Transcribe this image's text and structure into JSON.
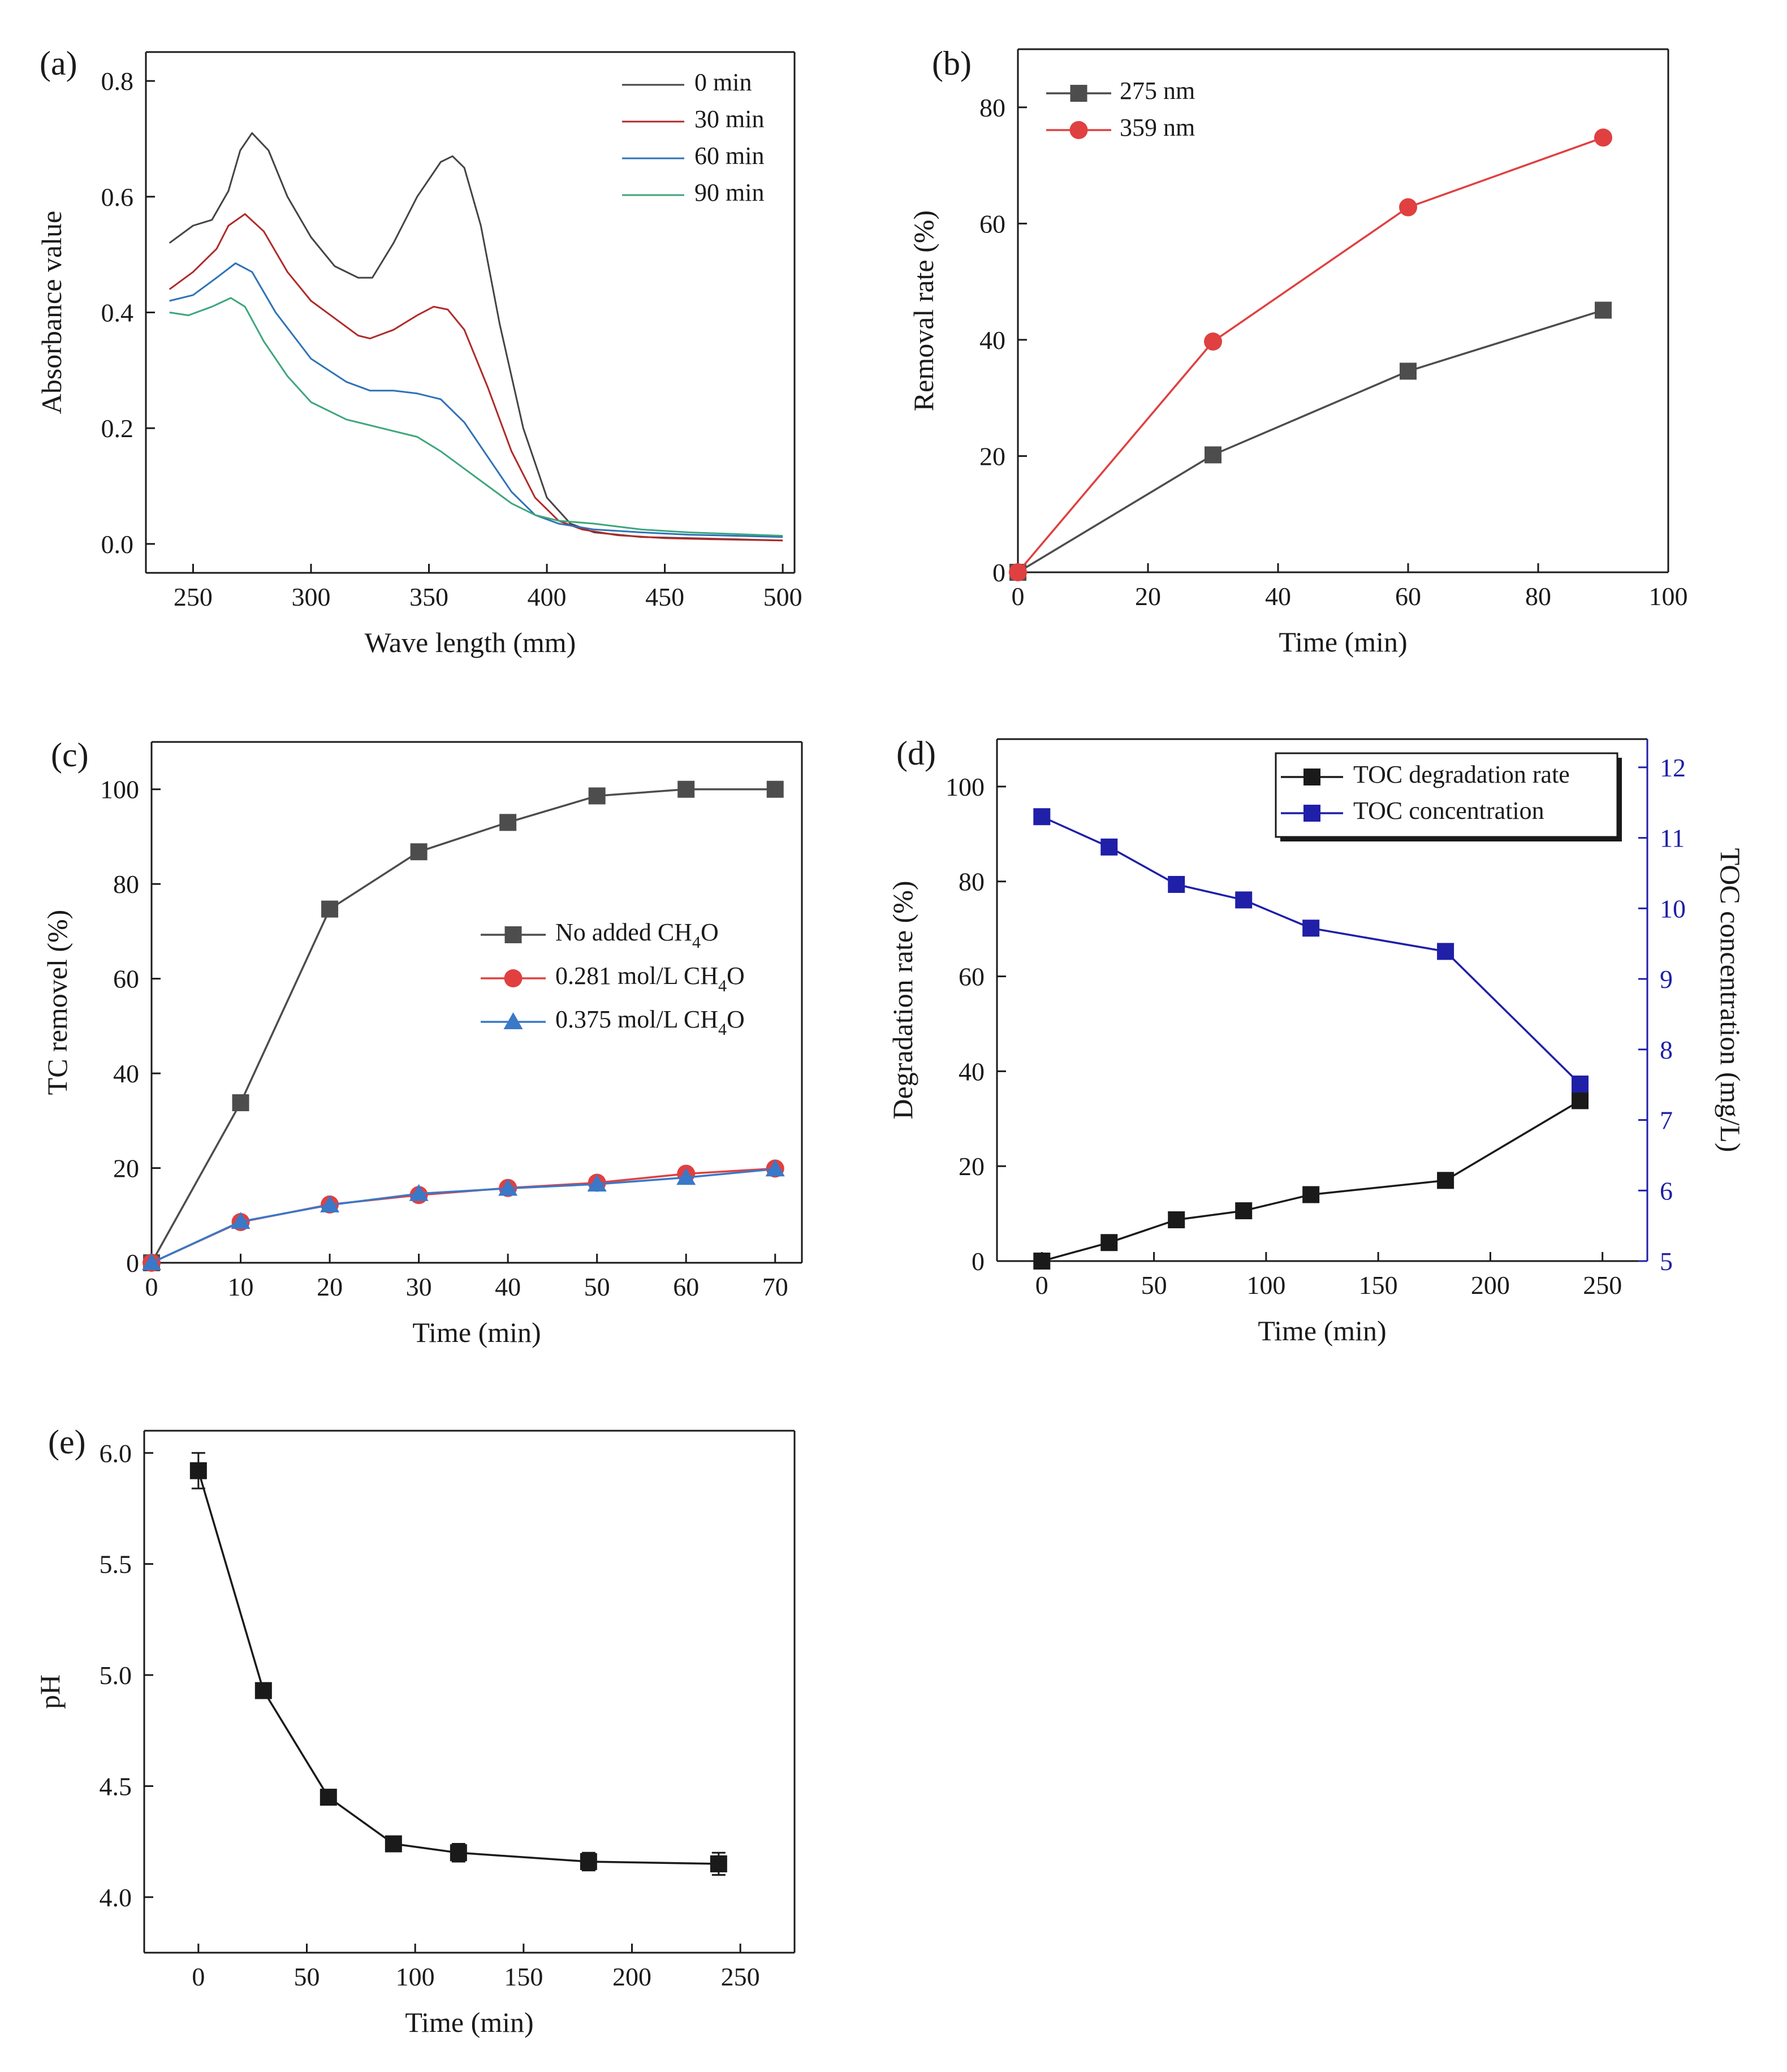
{
  "colors": {
    "black": "#1a1a1a",
    "gray": "#4d4d4d",
    "red": "#e04040",
    "blue": "#3a78c8",
    "dark_red": "#b02a2a",
    "steel_blue": "#2f72b8",
    "teal": "#3ea67c",
    "navy": "#1f1fa8",
    "axis": "#1a1a1a"
  },
  "chart_data": [
    {
      "id": "a",
      "letter": "(a)",
      "type": "line",
      "xlabel": "Wave length (mm)",
      "ylabel": "Absorbance value",
      "xlim": [
        230,
        505
      ],
      "ylim": [
        -0.05,
        0.85
      ],
      "xticks": [
        250,
        300,
        350,
        400,
        450,
        500
      ],
      "yticks": [
        0.0,
        0.2,
        0.4,
        0.6,
        0.8
      ],
      "ytick_labels": [
        "0.0",
        "0.2",
        "0.4",
        "0.6",
        "0.8"
      ],
      "grid": false,
      "legend_position": "top-right",
      "series": [
        {
          "name": "0 min",
          "color": "#444444",
          "marker": "none",
          "x": [
            240,
            250,
            258,
            265,
            270,
            275,
            282,
            290,
            300,
            310,
            320,
            326,
            335,
            345,
            355,
            360,
            365,
            372,
            380,
            390,
            400,
            410,
            420,
            440,
            460,
            480,
            500
          ],
          "y": [
            0.52,
            0.55,
            0.56,
            0.61,
            0.68,
            0.71,
            0.68,
            0.6,
            0.53,
            0.48,
            0.46,
            0.46,
            0.52,
            0.6,
            0.66,
            0.67,
            0.65,
            0.55,
            0.38,
            0.2,
            0.08,
            0.035,
            0.02,
            0.012,
            0.01,
            0.008,
            0.006
          ]
        },
        {
          "name": "30 min",
          "color": "#b02a2a",
          "marker": "none",
          "x": [
            240,
            250,
            260,
            265,
            272,
            280,
            290,
            300,
            310,
            320,
            325,
            335,
            345,
            352,
            358,
            365,
            375,
            385,
            395,
            405,
            415,
            430,
            450,
            470,
            500
          ],
          "y": [
            0.44,
            0.47,
            0.51,
            0.55,
            0.57,
            0.54,
            0.47,
            0.42,
            0.39,
            0.36,
            0.355,
            0.37,
            0.395,
            0.41,
            0.405,
            0.37,
            0.27,
            0.16,
            0.08,
            0.04,
            0.025,
            0.015,
            0.01,
            0.008,
            0.006
          ]
        },
        {
          "name": "60 min",
          "color": "#2f72b8",
          "marker": "none",
          "x": [
            240,
            250,
            260,
            268,
            275,
            285,
            300,
            315,
            325,
            335,
            345,
            355,
            365,
            375,
            385,
            395,
            405,
            420,
            440,
            460,
            480,
            500
          ],
          "y": [
            0.42,
            0.43,
            0.46,
            0.485,
            0.47,
            0.4,
            0.32,
            0.28,
            0.265,
            0.265,
            0.26,
            0.25,
            0.21,
            0.15,
            0.09,
            0.05,
            0.035,
            0.025,
            0.02,
            0.016,
            0.014,
            0.012
          ]
        },
        {
          "name": "90 min",
          "color": "#3ea67c",
          "marker": "none",
          "x": [
            240,
            248,
            258,
            266,
            272,
            280,
            290,
            300,
            315,
            330,
            345,
            355,
            365,
            375,
            385,
            395,
            405,
            420,
            440,
            460,
            480,
            500
          ],
          "y": [
            0.4,
            0.395,
            0.41,
            0.425,
            0.41,
            0.35,
            0.29,
            0.245,
            0.215,
            0.2,
            0.185,
            0.16,
            0.13,
            0.1,
            0.07,
            0.05,
            0.04,
            0.035,
            0.025,
            0.02,
            0.017,
            0.014
          ]
        }
      ]
    },
    {
      "id": "b",
      "letter": "(b)",
      "type": "line",
      "xlabel": "Time (min)",
      "ylabel": "Removal rate (%)",
      "xlim": [
        0,
        100
      ],
      "ylim": [
        0,
        90
      ],
      "xticks": [
        0,
        20,
        40,
        60,
        80,
        100
      ],
      "yticks": [
        0,
        20,
        40,
        60,
        80
      ],
      "grid": false,
      "legend_position": "top-left",
      "series": [
        {
          "name": "275 nm",
          "color": "#4d4d4d",
          "marker": "square",
          "x": [
            0,
            30,
            60,
            90
          ],
          "y": [
            0,
            20.2,
            34.6,
            45.1
          ]
        },
        {
          "name": "359 nm",
          "color": "#e04040",
          "marker": "circle",
          "x": [
            0,
            30,
            60,
            90
          ],
          "y": [
            0,
            39.7,
            62.8,
            74.8
          ]
        }
      ]
    },
    {
      "id": "c",
      "letter": "(c)",
      "type": "line",
      "xlabel": "Time (min)",
      "ylabel": "TC removel (%)",
      "xlim": [
        0,
        73
      ],
      "ylim": [
        0,
        110
      ],
      "xticks": [
        0,
        10,
        20,
        30,
        40,
        50,
        60,
        70
      ],
      "yticks": [
        0,
        20,
        40,
        60,
        80,
        100
      ],
      "grid": false,
      "legend_position": "center-right",
      "series": [
        {
          "name": "No added CH4O",
          "name_parts": [
            "No added CH",
            "4",
            "O"
          ],
          "color": "#4d4d4d",
          "marker": "square",
          "x": [
            0,
            10,
            20,
            30,
            40,
            50,
            60,
            70
          ],
          "y": [
            0,
            33.8,
            74.7,
            86.8,
            93.0,
            98.6,
            100,
            100
          ]
        },
        {
          "name": "0.281 mol/L CH4O",
          "name_parts": [
            "0.281 mol/L CH",
            "4",
            "O"
          ],
          "color": "#e04040",
          "marker": "circle",
          "x": [
            0,
            10,
            20,
            30,
            40,
            50,
            60,
            70
          ],
          "y": [
            0,
            8.6,
            12.3,
            14.3,
            15.8,
            16.9,
            18.8,
            19.9
          ]
        },
        {
          "name": "0.375 mol/L CH4O",
          "name_parts": [
            "0.375 mol/L CH",
            "4",
            "O"
          ],
          "color": "#3a78c8",
          "marker": "triangle",
          "x": [
            0,
            10,
            20,
            30,
            40,
            50,
            60,
            70
          ],
          "y": [
            0,
            8.7,
            12.2,
            14.6,
            15.7,
            16.6,
            18.0,
            19.8
          ]
        }
      ]
    },
    {
      "id": "d",
      "letter": "(d)",
      "type": "line",
      "xlabel": "Time (min)",
      "ylabel": "Degradation rate (%)",
      "ylabel_right": "TOC concentration (mg/L)",
      "xlim": [
        -20,
        270
      ],
      "ylim": [
        0,
        110
      ],
      "ylim_right": [
        5,
        12.4
      ],
      "xticks": [
        0,
        50,
        100,
        150,
        200,
        250
      ],
      "yticks": [
        0,
        20,
        40,
        60,
        80,
        100
      ],
      "yticks_right": [
        5,
        6,
        7,
        8,
        9,
        10,
        11,
        12
      ],
      "grid": false,
      "legend_position": "top-right",
      "series": [
        {
          "name": "TOC degradation rate",
          "color": "#1a1a1a",
          "marker": "square",
          "axis": "left",
          "x": [
            0,
            30,
            60,
            90,
            120,
            180,
            240
          ],
          "y": [
            0,
            3.9,
            8.7,
            10.6,
            14.0,
            17.0,
            33.8
          ]
        },
        {
          "name": "TOC concentration",
          "color": "#1f1fa8",
          "marker": "square",
          "axis": "right",
          "x": [
            0,
            30,
            60,
            90,
            120,
            180,
            240
          ],
          "y": [
            11.3,
            10.87,
            10.34,
            10.12,
            9.72,
            9.39,
            7.51
          ],
          "error": [
            0.1,
            0.07,
            0.09,
            0.1,
            0.09,
            0.06,
            0.08
          ]
        }
      ]
    },
    {
      "id": "e",
      "letter": "(e)",
      "type": "line",
      "xlabel": "Time (min)",
      "ylabel": "pH",
      "xlim": [
        -25,
        275
      ],
      "ylim": [
        3.75,
        6.1
      ],
      "xticks": [
        0,
        50,
        100,
        150,
        200,
        250
      ],
      "yticks": [
        4.0,
        4.5,
        5.0,
        5.5,
        6.0
      ],
      "ytick_labels": [
        "4.0",
        "4.5",
        "5.0",
        "5.5",
        "6.0"
      ],
      "grid": false,
      "series": [
        {
          "name": "",
          "color": "#1a1a1a",
          "marker": "square",
          "x": [
            0,
            30,
            60,
            90,
            120,
            180,
            240
          ],
          "y": [
            5.92,
            4.93,
            4.45,
            4.24,
            4.2,
            4.16,
            4.15
          ],
          "error": [
            0.08,
            0.03,
            0.03,
            0.03,
            0.04,
            0.04,
            0.05
          ]
        }
      ]
    }
  ]
}
